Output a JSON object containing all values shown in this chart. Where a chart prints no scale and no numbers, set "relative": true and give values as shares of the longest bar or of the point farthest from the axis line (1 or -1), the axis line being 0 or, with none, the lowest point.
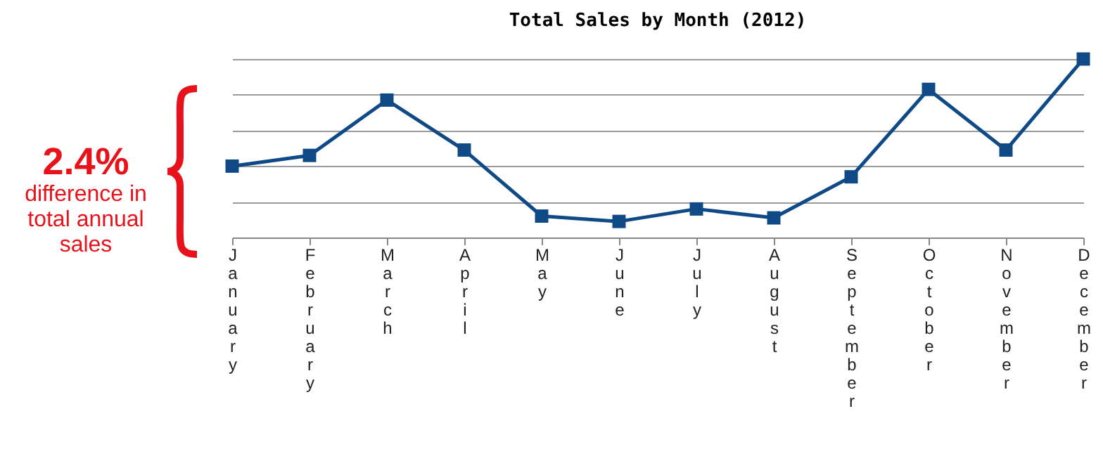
{
  "chart_data": {
    "type": "line",
    "title": "Total Sales by Month (2012)",
    "categories": [
      "January",
      "February",
      "March",
      "April",
      "May",
      "June",
      "July",
      "August",
      "September",
      "October",
      "November",
      "December"
    ],
    "series": [
      {
        "color": "#0f4a87",
        "values": [
          0.4,
          0.46,
          0.77,
          0.49,
          0.12,
          0.09,
          0.16,
          0.11,
          0.34,
          0.83,
          0.49,
          1
        ]
      }
    ],
    "relative": true,
    "grid": "y",
    "marker": "square",
    "line_style": "solid",
    "annotations": [
      "2.4%",
      "difference in total annual sales"
    ]
  }
}
